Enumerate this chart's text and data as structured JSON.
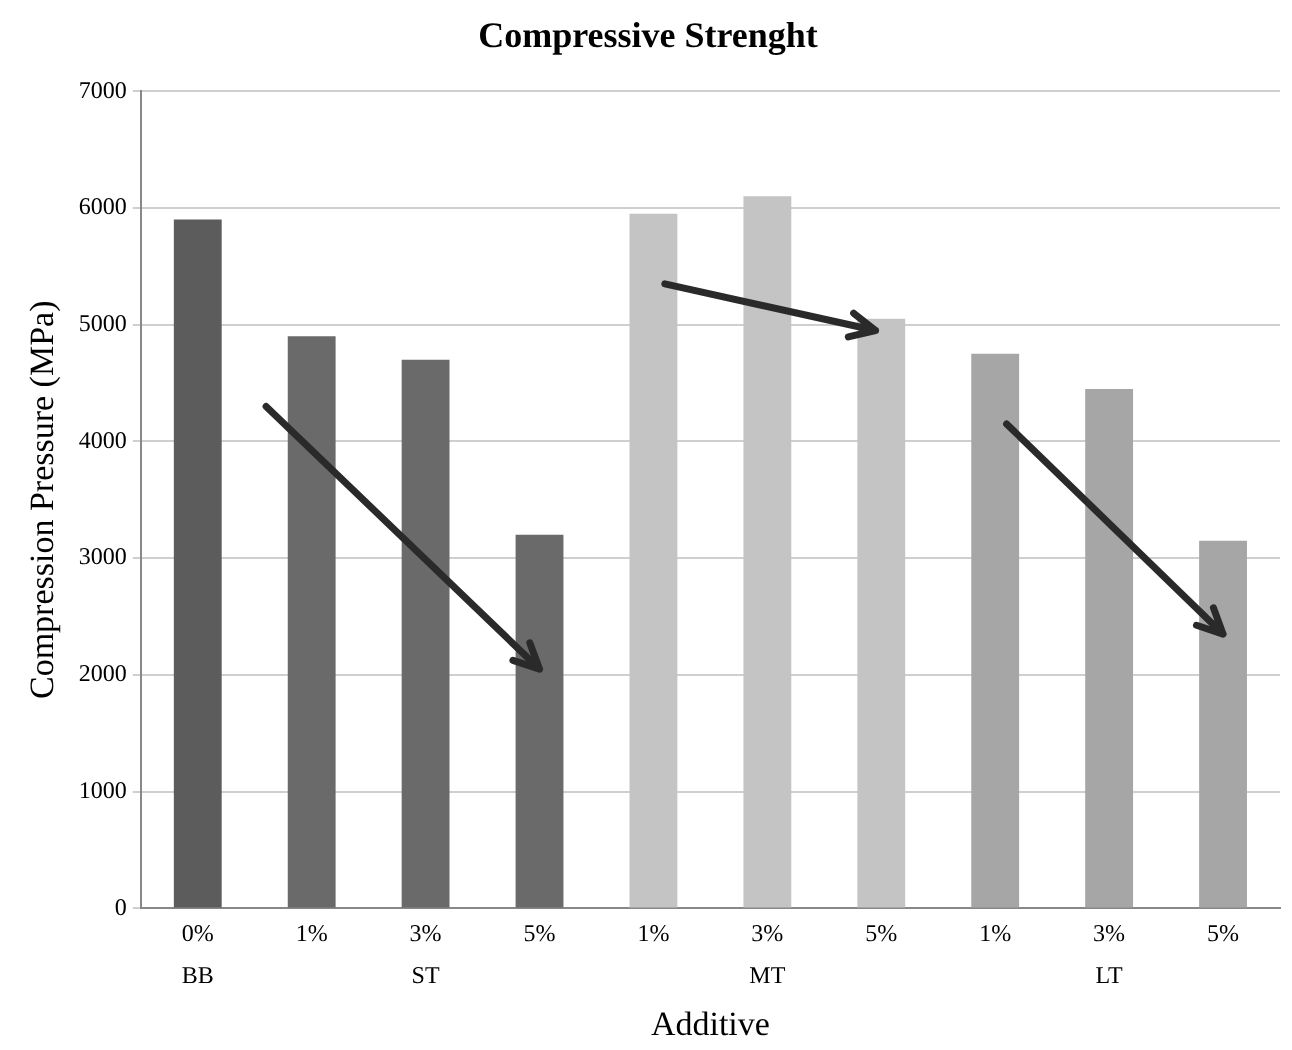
{
  "chart_data": {
    "type": "bar",
    "title": "Compressive Strenght",
    "xlabel": "Additive",
    "ylabel": "Compression Pressure (MPa)",
    "categories": [
      "0%",
      "1%",
      "3%",
      "5%",
      "1%",
      "3%",
      "5%",
      "1%",
      "3%",
      "5%"
    ],
    "values": [
      5900,
      4900,
      4700,
      3200,
      5950,
      6100,
      5050,
      4750,
      4450,
      3150
    ],
    "colors": [
      "#5c5c5c",
      "#6a6a6a",
      "#6a6a6a",
      "#6a6a6a",
      "#c4c4c4",
      "#c4c4c4",
      "#c4c4c4",
      "#a6a6a6",
      "#a6a6a6",
      "#a6a6a6"
    ],
    "annotations": [
      "BB",
      "ST",
      "MT",
      "LT"
    ],
    "ylim": [
      0,
      7000
    ],
    "yticks": [
      0,
      1000,
      2000,
      3000,
      4000,
      5000,
      6000,
      7000
    ],
    "grid": "y",
    "legend": false
  }
}
